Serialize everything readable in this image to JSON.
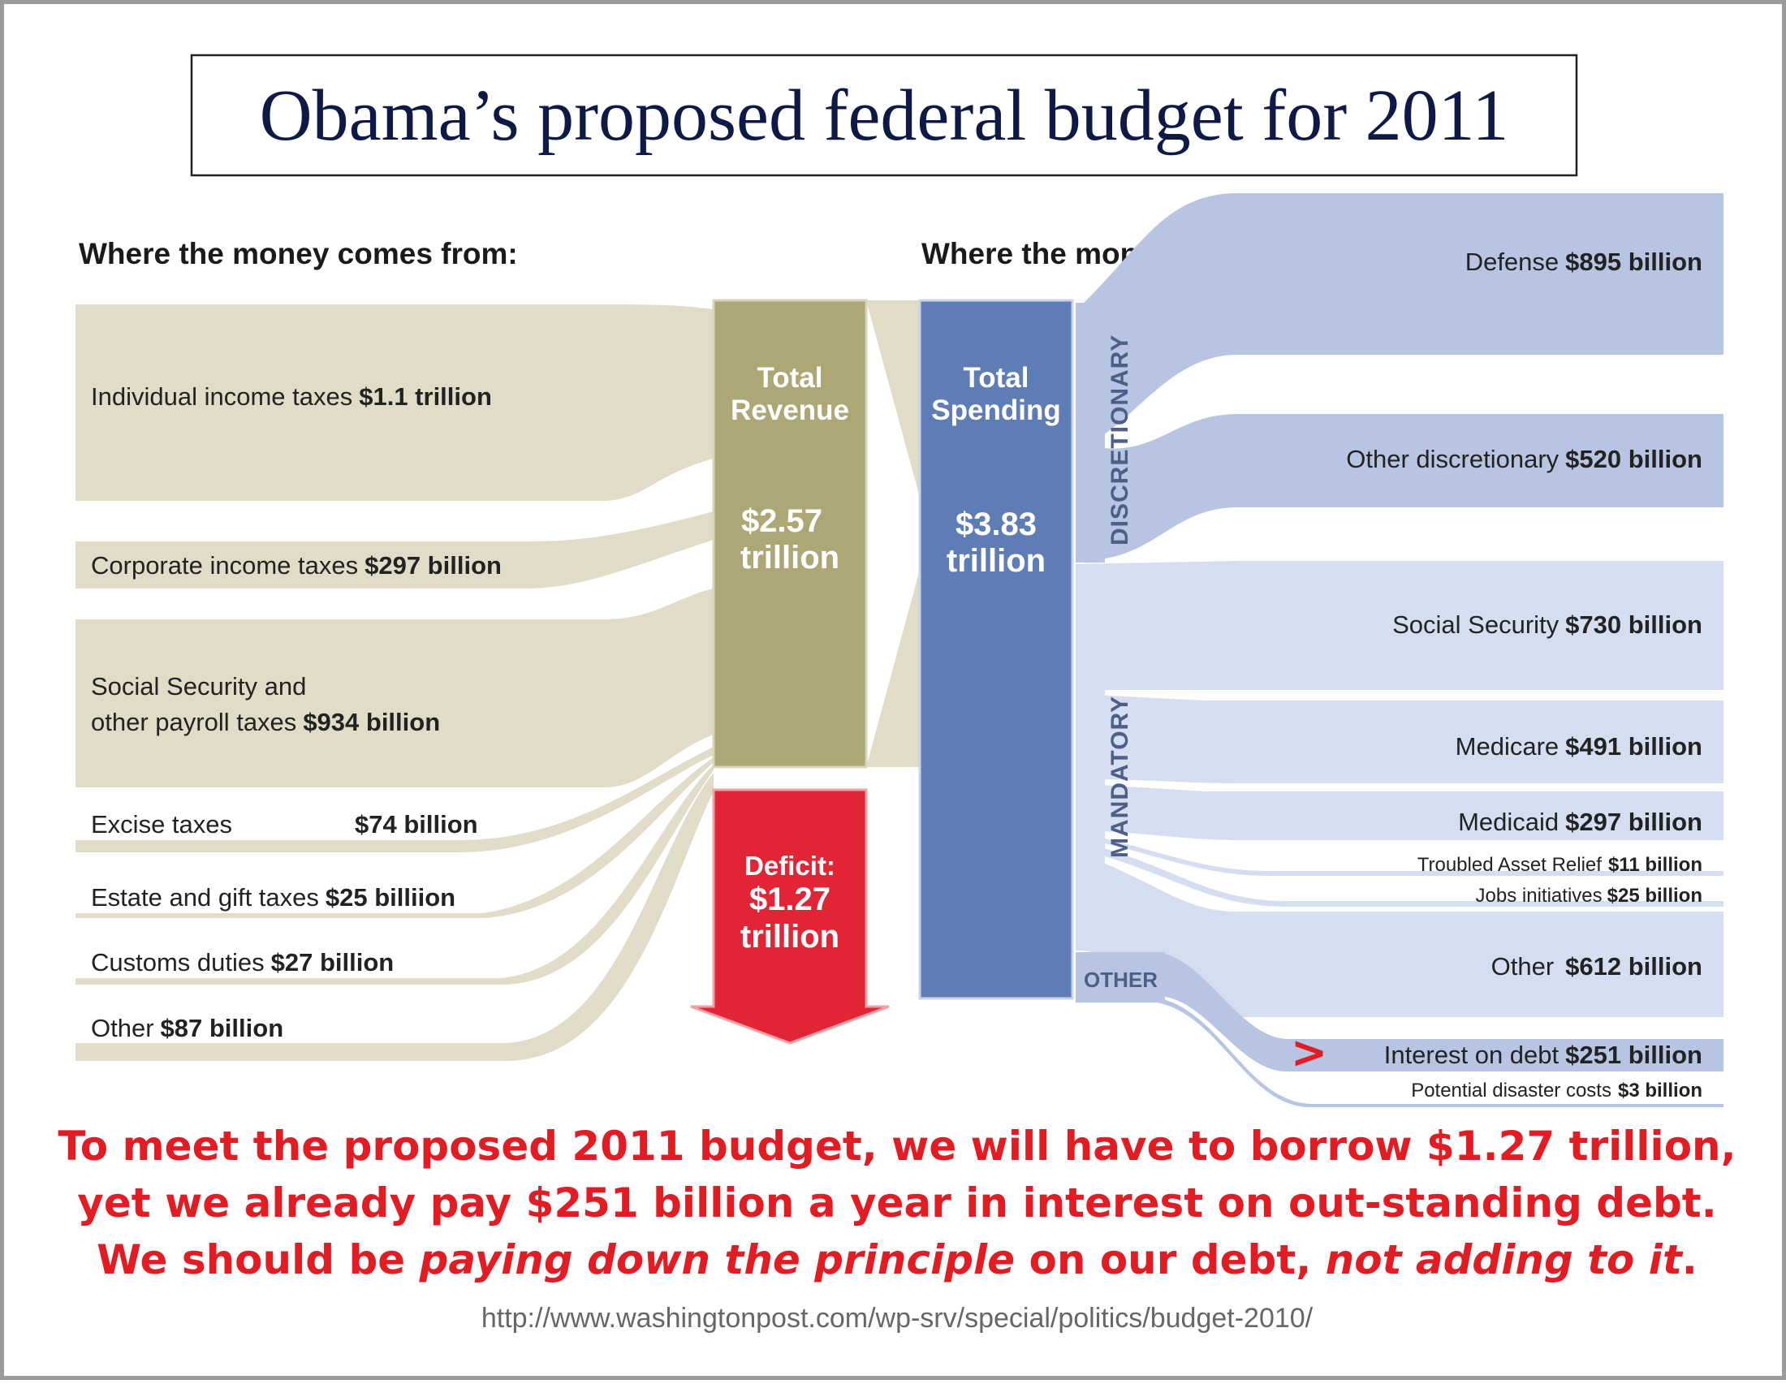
{
  "title": "Obama’s proposed federal budget for 2011",
  "left_header": "Where the money comes from:",
  "right_header": "Where the money goes:",
  "revenue": {
    "label": [
      "Total",
      "Revenue"
    ],
    "value": [
      "$2.57",
      "trillion"
    ],
    "color": "#ada675",
    "items": [
      {
        "name": "Individual income taxes",
        "amount": "$1.1 trillion"
      },
      {
        "name": "Corporate income taxes",
        "amount": "$297 billion"
      },
      {
        "name": "Social Security and",
        "name2": "other payroll taxes",
        "amount": "$934 billion"
      },
      {
        "name": "Excise taxes",
        "amount": "$74 billion"
      },
      {
        "name": "Estate and gift taxes",
        "amount": "$25 billiion"
      },
      {
        "name": "Customs duties",
        "amount": "$27 billion"
      },
      {
        "name": "Other",
        "amount": "$87 billion"
      }
    ]
  },
  "deficit": {
    "label": "Deficit:",
    "value": [
      "$1.27",
      "trillion"
    ],
    "color": "#e12534"
  },
  "spending": {
    "label": [
      "Total",
      "Spending"
    ],
    "value": [
      "$3.83",
      "trillion"
    ],
    "color": "#5f7db5",
    "groups": [
      "DISCRETIONARY",
      "MANDATORY",
      "OTHER"
    ],
    "items": [
      {
        "name": "Defense",
        "amount": "$895 billion"
      },
      {
        "name": "Other discretionary",
        "amount": "$520 billion"
      },
      {
        "name": "Social Security",
        "amount": "$730 billion"
      },
      {
        "name": "Medicare",
        "amount": "$491 billion"
      },
      {
        "name": "Medicaid",
        "amount": "$297 billion"
      },
      {
        "name": "Troubled Asset Relief",
        "amount": "$11 billion"
      },
      {
        "name": "Jobs initiatives",
        "amount": "$25 billion"
      },
      {
        "name": "Other",
        "amount": "$612 billion"
      },
      {
        "name": "Interest on debt",
        "amount": "$251 billion"
      },
      {
        "name": "Potential disaster costs",
        "amount": "$3 billion"
      }
    ]
  },
  "marker": ">",
  "caption": {
    "line1": "To meet the proposed 2011 budget, we will have to borrow $1.27 trillion,",
    "line2": "yet we already pay $251 billion a year in interest on out-standing debt.",
    "line3a": "We should be ",
    "line3b": "paying down the principle",
    "line3c": " on our debt, ",
    "line3d": "not adding to it",
    "line3e": "."
  },
  "source": "http://www.washingtonpost.com/wp-srv/special/politics/budget-2010/",
  "colors": {
    "source_flow": "#e0dcc8",
    "dest_flow_dark": "#b7c5e3",
    "dest_flow_light": "#d5def0",
    "caption": "#e31c23"
  }
}
